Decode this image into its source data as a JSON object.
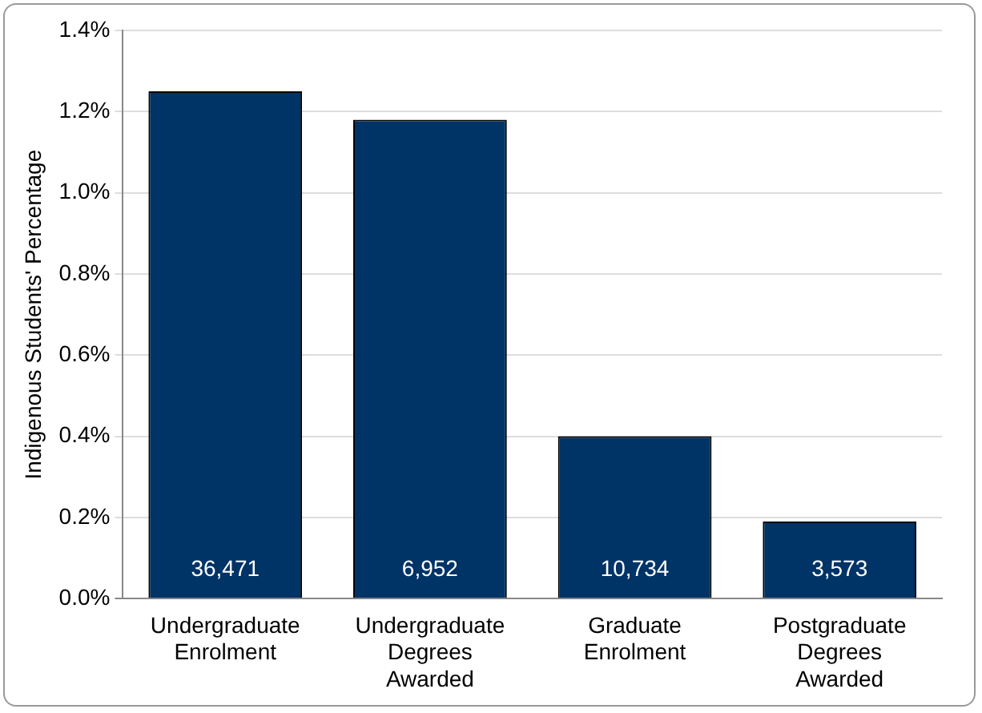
{
  "chart_data": {
    "type": "bar",
    "ylabel": "Indigenous Students' Percentage",
    "categories": [
      "Undergraduate Enrolment",
      "Undergraduate Degrees Awarded",
      "Graduate Enrolment",
      "Postgraduate Degrees Awarded"
    ],
    "values": [
      1.25,
      1.18,
      0.4,
      0.19
    ],
    "annotations": [
      "36,471",
      "6,952",
      "10,734",
      "3,573"
    ],
    "color": "#003366",
    "ylim": [
      0,
      1.4
    ],
    "yticks": [
      {
        "value": 0,
        "label": "0.0%"
      },
      {
        "value": 0.2,
        "label": "0.2%"
      },
      {
        "value": 0.4,
        "label": "0.4%"
      },
      {
        "value": 0.6,
        "label": "0.6%"
      },
      {
        "value": 0.8,
        "label": "0.8%"
      },
      {
        "value": 1.0,
        "label": "1.0%"
      },
      {
        "value": 1.2,
        "label": "1.2%"
      },
      {
        "value": 1.4,
        "label": "1.4%"
      }
    ],
    "grid": "y",
    "legend": false
  }
}
